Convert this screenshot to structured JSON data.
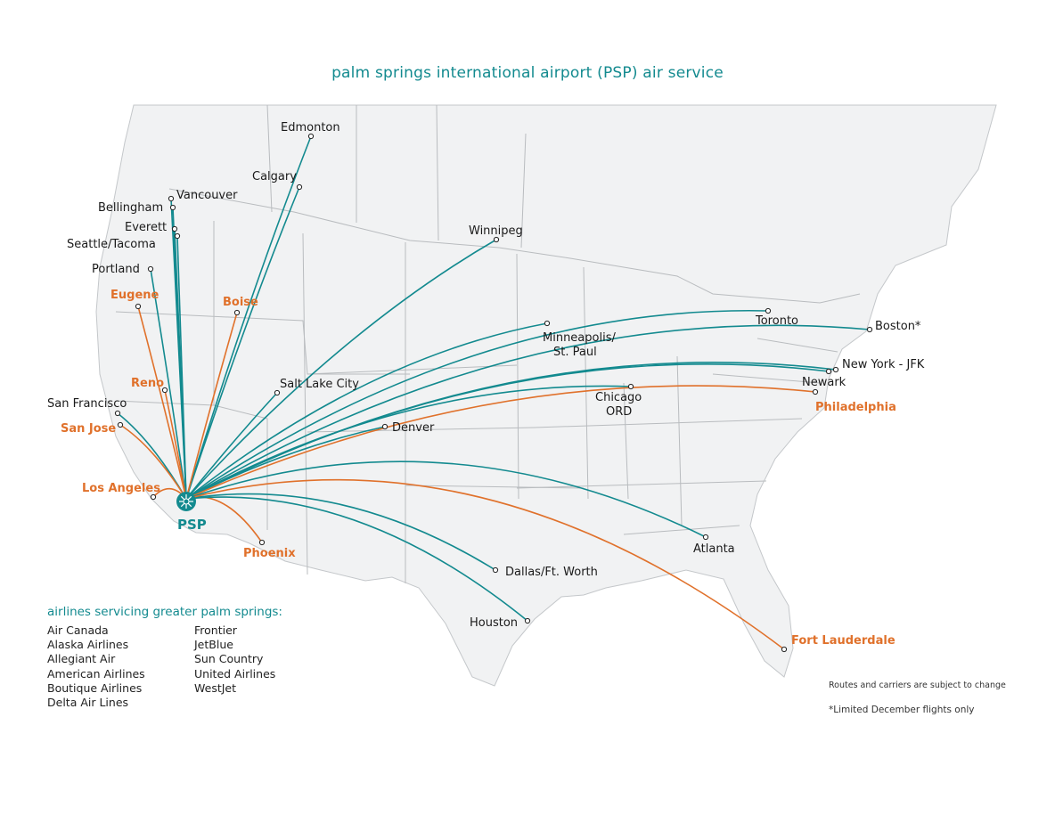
{
  "title": "palm springs international airport (PSP) air service",
  "hub": {
    "code": "PSP"
  },
  "colors": {
    "mainline": "#138a8f",
    "highlight": "#e0712b",
    "land": "#f1f2f3",
    "border": "#b9bcbf",
    "label": "#1a1a1a"
  },
  "routes": [
    {
      "name": "Edmonton",
      "color": "mainline"
    },
    {
      "name": "Calgary",
      "color": "mainline"
    },
    {
      "name": "Vancouver",
      "color": "mainline"
    },
    {
      "name": "Bellingham",
      "color": "mainline"
    },
    {
      "name": "Everett",
      "color": "mainline"
    },
    {
      "name": "Seattle/Tacoma",
      "color": "mainline"
    },
    {
      "name": "Portland",
      "color": "mainline"
    },
    {
      "name": "Eugene",
      "color": "highlight"
    },
    {
      "name": "Boise",
      "color": "highlight"
    },
    {
      "name": "Reno",
      "color": "highlight"
    },
    {
      "name": "San Francisco",
      "color": "mainline"
    },
    {
      "name": "San Jose",
      "color": "highlight"
    },
    {
      "name": "Los Angeles",
      "color": "highlight"
    },
    {
      "name": "Phoenix",
      "color": "highlight"
    },
    {
      "name": "Salt Lake City",
      "color": "mainline"
    },
    {
      "name": "Denver",
      "color": "mainline"
    },
    {
      "name": "Winnipeg",
      "color": "mainline"
    },
    {
      "name": "Minneapolis/ St. Paul",
      "color": "mainline"
    },
    {
      "name": "Chicago ORD",
      "color": "mainline"
    },
    {
      "name": "Toronto",
      "color": "mainline"
    },
    {
      "name": "Boston*",
      "color": "mainline"
    },
    {
      "name": "New York - JFK",
      "color": "mainline"
    },
    {
      "name": "Newark",
      "color": "mainline"
    },
    {
      "name": "Philadelphia",
      "color": "highlight"
    },
    {
      "name": "Atlanta",
      "color": "mainline"
    },
    {
      "name": "Dallas/Ft. Worth",
      "color": "mainline"
    },
    {
      "name": "Houston",
      "color": "mainline"
    },
    {
      "name": "Fort Lauderdale",
      "color": "highlight"
    }
  ],
  "airlines_heading": "airlines servicing greater palm springs:",
  "airlines_col1": [
    "Air Canada",
    "Alaska Airlines",
    "Allegiant Air",
    "American Airlines",
    "Boutique Airlines",
    "Delta Air Lines"
  ],
  "airlines_col2": [
    "Frontier",
    "JetBlue",
    "Sun Country",
    "United Airlines",
    "WestJet"
  ],
  "notes": {
    "routes": "Routes and carriers are subject to change",
    "boston": "*Limited December flights only"
  }
}
